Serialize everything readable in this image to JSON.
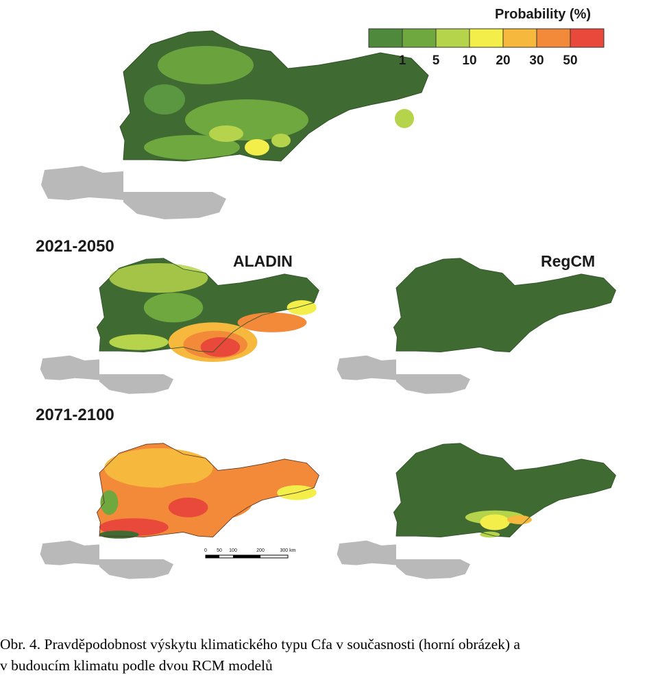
{
  "legend": {
    "title": "Probability (%)",
    "ticks": [
      "1",
      "5",
      "10",
      "20",
      "30",
      "50"
    ],
    "colors": [
      "#4f8a3c",
      "#6fa83f",
      "#b5d44b",
      "#f4ee4a",
      "#f6b93e",
      "#f28a3a",
      "#e8493a"
    ]
  },
  "periods": [
    "2021-2050",
    "2071-2100"
  ],
  "models": [
    "ALADIN",
    "RegCM"
  ],
  "scale_bar": {
    "labels": [
      "0",
      "50",
      "100",
      "200",
      "300 km"
    ]
  },
  "caption": {
    "line1": "Obr. 4. Pravděpodobnost výskytu klimatického typu Cfa v současnosti (horní obrázek) a",
    "line2": "v budoucím klimatu podle dvou RCM modelů"
  },
  "colors": {
    "dark_green": "#3f6b32",
    "alps_gray": "#b9b9b9"
  }
}
